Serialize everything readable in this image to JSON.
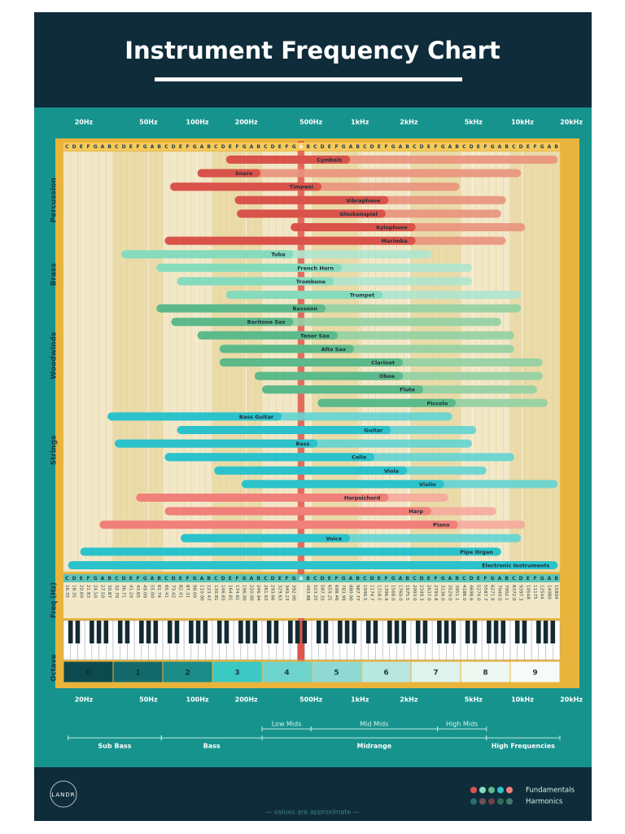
{
  "chart_data": {
    "type": "range",
    "title": "Instrument Frequency Chart",
    "xscale": "log",
    "xlim": [
      15,
      17000
    ],
    "xticks": [
      {
        "value": 20,
        "label": "20Hz"
      },
      {
        "value": 50,
        "label": "50Hz"
      },
      {
        "value": 100,
        "label": "100Hz"
      },
      {
        "value": 200,
        "label": "200Hz"
      },
      {
        "value": 500,
        "label": "500Hz"
      },
      {
        "value": 1000,
        "label": "1kHz"
      },
      {
        "value": 2000,
        "label": "2kHz"
      },
      {
        "value": 5000,
        "label": "5kHz"
      },
      {
        "value": 10000,
        "label": "10kHz"
      },
      {
        "value": 20000,
        "label": "20kHz"
      }
    ],
    "grid": true,
    "groups": [
      {
        "label": "Percussion",
        "color": "#d9534a",
        "harmonic_color": "#e9927c",
        "instruments": [
          {
            "name": "Cymbals",
            "low": 150,
            "high": 870,
            "harmonic_high": 16500
          },
          {
            "name": "Snare",
            "low": 100,
            "high": 245,
            "harmonic_high": 9800
          },
          {
            "name": "Timpani",
            "low": 68,
            "high": 580,
            "harmonic_high": 4100
          },
          {
            "name": "Vibraphone",
            "low": 170,
            "high": 1500,
            "harmonic_high": 7900
          },
          {
            "name": "Glockenspiel",
            "low": 175,
            "high": 1440,
            "harmonic_high": 7400
          },
          {
            "name": "Xylophone",
            "low": 375,
            "high": 2200,
            "harmonic_high": 10400
          },
          {
            "name": "Marimba",
            "low": 63,
            "high": 2200,
            "harmonic_high": 7900
          }
        ]
      },
      {
        "label": "Brass",
        "color": "#86dbbd",
        "harmonic_color": "#aee6cf",
        "instruments": [
          {
            "name": "Tuba",
            "low": 34,
            "high": 390,
            "harmonic_high": 2750
          },
          {
            "name": "French Horn",
            "low": 56,
            "high": 775,
            "harmonic_high": 4900
          },
          {
            "name": "Trombone",
            "low": 75,
            "high": 690,
            "harmonic_high": 4900
          },
          {
            "name": "Trumpet",
            "low": 150,
            "high": 1380,
            "harmonic_high": 9800
          }
        ]
      },
      {
        "label": "Woodwinds",
        "color": "#5cb98a",
        "harmonic_color": "#92d0a2",
        "instruments": [
          {
            "name": "Bassoon",
            "low": 56,
            "high": 615,
            "harmonic_high": 9800
          },
          {
            "name": "Baritone Sax",
            "low": 69,
            "high": 390,
            "harmonic_high": 7400
          },
          {
            "name": "Tenor Sax",
            "low": 100,
            "high": 730,
            "harmonic_high": 8900
          },
          {
            "name": "Alto Sax",
            "low": 137,
            "high": 920,
            "harmonic_high": 8900
          },
          {
            "name": "Clarinet",
            "low": 137,
            "high": 1840,
            "harmonic_high": 13300
          },
          {
            "name": "Oboe",
            "low": 225,
            "high": 1840,
            "harmonic_high": 13300
          },
          {
            "name": "Flute",
            "low": 250,
            "high": 2450,
            "harmonic_high": 12300
          },
          {
            "name": "Piccolo",
            "low": 550,
            "high": 3900,
            "harmonic_high": 14300
          }
        ]
      },
      {
        "label": "Strings",
        "color": "#2cc2cb",
        "harmonic_color": "#63d4d1",
        "instruments": [
          {
            "name": "Bass Guitar",
            "low": 28,
            "high": 330,
            "harmonic_high": 3700
          },
          {
            "name": "Guitar",
            "low": 75,
            "high": 1550,
            "harmonic_high": 5200
          },
          {
            "name": "Bass",
            "low": 31,
            "high": 550,
            "harmonic_high": 4900
          },
          {
            "name": "Cello",
            "low": 63,
            "high": 1230,
            "harmonic_high": 8900
          },
          {
            "name": "Viola",
            "low": 127,
            "high": 1950,
            "harmonic_high": 6000
          },
          {
            "name": "Violin",
            "low": 187,
            "high": 3300,
            "harmonic_high": 16500
          }
        ]
      },
      {
        "color": "#f0807a",
        "harmonic_color": "#f5aa9c",
        "instruments": [
          {
            "name": "Harpsichord",
            "low": 42,
            "high": 1500,
            "harmonic_high": 3500
          },
          {
            "name": "Harp",
            "low": 63,
            "high": 2750,
            "harmonic_high": 6900
          },
          {
            "name": "Piano",
            "low": 25,
            "high": 4000,
            "harmonic_high": 10400
          }
        ]
      },
      {
        "color": "#2cc2cb",
        "harmonic_color": "#63d4d1",
        "instruments": [
          {
            "name": "Voice",
            "low": 79,
            "high": 870,
            "harmonic_high": 9800
          },
          {
            "name": "Pipe Organ",
            "low": 19,
            "high": 7400,
            "harmonic_high": null
          },
          {
            "name": "Electronic Instruments",
            "low": 16,
            "high": 16500,
            "harmonic_high": null
          }
        ]
      }
    ],
    "note_letters": [
      "C",
      "D",
      "E",
      "F",
      "G",
      "A",
      "B"
    ],
    "freq_label": "Freq (Hz)",
    "note_frequencies": [
      "16.35",
      "18.35",
      "20.60",
      "21.83",
      "24.50",
      "27.50",
      "30.87",
      "32.70",
      "36.71",
      "41.20",
      "43.65",
      "49.00",
      "55.00",
      "61.74",
      "65.41",
      "73.42",
      "82.41",
      "87.31",
      "98.00",
      "110.00",
      "123.47",
      "130.81",
      "146.83",
      "164.81",
      "174.61",
      "196.00",
      "220.00",
      "246.94",
      "261.63",
      "293.66",
      "329.63",
      "349.23",
      "392.00",
      "440.00",
      "493.88",
      "523.25",
      "587.33",
      "659.25",
      "698.46",
      "783.99",
      "880.00",
      "987.77",
      "1046.5",
      "1174.7",
      "1318.5",
      "1396.9",
      "1568.0",
      "1760.0",
      "1975.5",
      "2093.0",
      "2349.3",
      "2637.0",
      "2793.8",
      "3136.0",
      "3520.0",
      "3951.1",
      "4186.0",
      "4698.6",
      "5274.0",
      "5587.7",
      "6271.9",
      "7040.0",
      "7902.1",
      "8372.0",
      "9397.3",
      "10548",
      "11175",
      "12544",
      "14080",
      "15804"
    ],
    "octave_label": "Octave",
    "octaves": [
      0,
      1,
      2,
      3,
      4,
      5,
      6,
      7,
      8,
      9
    ],
    "sub_ranges": [
      {
        "label": "Low Mids",
        "from": 250,
        "to": 500
      },
      {
        "label": "Mid Mids",
        "from": 500,
        "to": 3000
      },
      {
        "label": "High Mids",
        "from": 3000,
        "to": 6000
      }
    ],
    "ranges": [
      {
        "label": "Sub Bass",
        "from": 16,
        "to": 60
      },
      {
        "label": "Bass",
        "from": 60,
        "to": 250
      },
      {
        "label": "Midrange",
        "from": 250,
        "to": 6000
      },
      {
        "label": "High Frequencies",
        "from": 6000,
        "to": 17000
      }
    ],
    "legend": [
      "Fundamentals",
      "Harmonics"
    ],
    "logo": "LANDR",
    "footnote": "— values are approximate —"
  }
}
